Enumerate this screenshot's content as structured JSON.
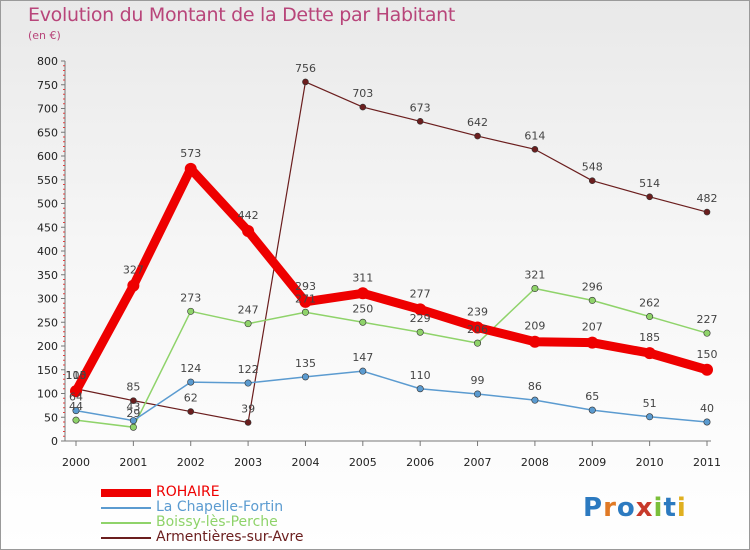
{
  "chart_data": {
    "type": "line",
    "title": "Evolution du Montant de la Dette par Habitant",
    "subtitle": "(en €)",
    "xlabel": "",
    "ylabel": "",
    "x": [
      "2000",
      "2001",
      "2002",
      "2003",
      "2004",
      "2005",
      "2006",
      "2007",
      "2008",
      "2009",
      "2010",
      "2011"
    ],
    "ylim": [
      0,
      800
    ],
    "yticks": [
      0,
      50,
      100,
      150,
      200,
      250,
      300,
      350,
      400,
      450,
      500,
      550,
      600,
      650,
      700,
      750,
      800
    ],
    "grid": false,
    "legend_position": "bottom-left",
    "series": [
      {
        "name": "ROHAIRE",
        "color": "#ee0000",
        "values": [
          105,
          327,
          573,
          442,
          293,
          311,
          277,
          239,
          209,
          207,
          185,
          150
        ]
      },
      {
        "name": "La Chapelle-Fortin",
        "color": "#5b9bd0",
        "values": [
          64,
          43,
          124,
          122,
          135,
          147,
          110,
          99,
          86,
          65,
          51,
          40
        ]
      },
      {
        "name": "Boissy-lès-Perche",
        "color": "#8fd36a",
        "values": [
          44,
          29,
          273,
          247,
          271,
          250,
          229,
          206,
          321,
          296,
          262,
          227
        ]
      },
      {
        "name": "Armentières-sur-Avre",
        "color": "#6b1e1e",
        "values": [
          110,
          85,
          62,
          39,
          756,
          703,
          673,
          642,
          614,
          548,
          514,
          482
        ]
      }
    ]
  },
  "labels": {
    "rohaire": [
      "105",
      "327",
      "573",
      "442",
      "293",
      "311",
      "277",
      "239",
      "209",
      "207",
      "185",
      "150"
    ],
    "chapelle": [
      "64",
      "43",
      "124",
      "122",
      "135",
      "147",
      "110",
      "99",
      "86",
      "65",
      "51",
      "40"
    ],
    "boissy": [
      "44",
      "29",
      "273",
      "247",
      "271",
      "250",
      "229",
      "206",
      "321",
      "296",
      "262",
      "227"
    ],
    "armentieres": [
      "110",
      "85",
      "62",
      "39",
      "756",
      "703",
      "673",
      "642",
      "614",
      "548",
      "514",
      "482"
    ]
  },
  "logo_text": "Proxiti"
}
